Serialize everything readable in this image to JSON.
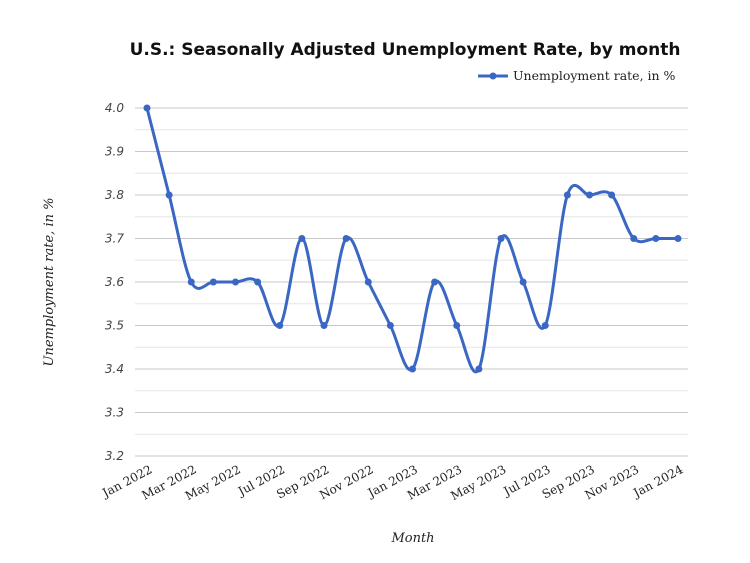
{
  "chart_data": {
    "type": "line",
    "title": "U.S.: Seasonally Adjusted Unemployment Rate, by month",
    "xlabel": "Month",
    "ylabel": "Unemployment rate, in %",
    "ylim": [
      3.2,
      4.0
    ],
    "yticks": [
      "3.2",
      "3.3",
      "3.4",
      "3.5",
      "3.6",
      "3.7",
      "3.8",
      "3.9",
      "4.0"
    ],
    "grid": true,
    "legend_position": "top-right",
    "x": [
      "Jan 2022",
      "Feb 2022",
      "Mar 2022",
      "Apr 2022",
      "May 2022",
      "Jun 2022",
      "Jul 2022",
      "Aug 2022",
      "Sep 2022",
      "Oct 2022",
      "Nov 2022",
      "Dec 2022",
      "Jan 2023",
      "Feb 2023",
      "Mar 2023",
      "Apr 2023",
      "May 2023",
      "Jun 2023",
      "Jul 2023",
      "Aug 2023",
      "Sep 2023",
      "Oct 2023",
      "Nov 2023",
      "Dec 2023",
      "Jan 2024"
    ],
    "xtick_labels": [
      "Jan 2022",
      "Mar 2022",
      "May 2022",
      "Jul 2022",
      "Sep 2022",
      "Nov 2022",
      "Jan 2023",
      "Mar 2023",
      "May 2023",
      "Jul 2023",
      "Sep 2023",
      "Nov 2023",
      "Jan 2024"
    ],
    "series": [
      {
        "name": "Unemployment rate, in %",
        "color": "#3a67c4",
        "values": [
          4.0,
          3.8,
          3.6,
          3.6,
          3.6,
          3.6,
          3.5,
          3.7,
          3.5,
          3.7,
          3.6,
          3.5,
          3.4,
          3.6,
          3.5,
          3.4,
          3.7,
          3.6,
          3.5,
          3.8,
          3.8,
          3.8,
          3.7,
          3.7,
          3.7
        ]
      }
    ]
  }
}
